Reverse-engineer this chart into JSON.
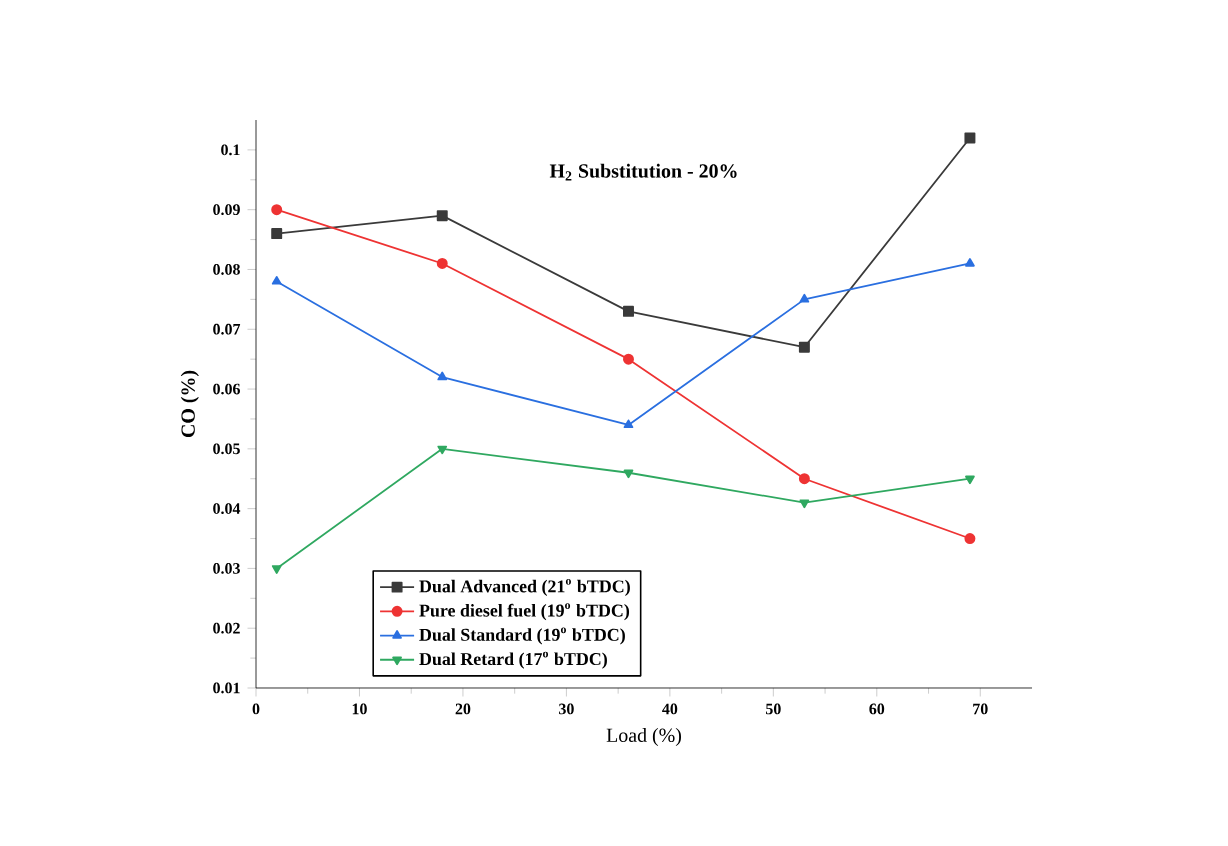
{
  "chart_data": {
    "type": "line",
    "title": "H$_{2}$ Substitution - 20%",
    "xlabel": "Load (%)",
    "ylabel": "CO (%)",
    "x": [
      2,
      18,
      36,
      53,
      69
    ],
    "series": [
      {
        "name": "Dual Advanced (21$^{o}$ bTDC)",
        "color": "#3a3a3a",
        "marker": "square",
        "values": [
          0.086,
          0.089,
          0.073,
          0.067,
          0.102
        ]
      },
      {
        "name": "Pure diesel fuel (19$^{o}$ bTDC)",
        "color": "#ee3333",
        "marker": "circle",
        "values": [
          0.09,
          0.081,
          0.065,
          0.045,
          0.035
        ]
      },
      {
        "name": "Dual Standard (19$^{o}$ bTDC)",
        "color": "#2a6fe0",
        "marker": "triangle",
        "values": [
          0.078,
          0.062,
          0.054,
          0.075,
          0.081
        ]
      },
      {
        "name": "Dual Retard (17$^{o}$ bTDC)",
        "color": "#2fa860",
        "marker": "triangle-down",
        "values": [
          0.03,
          0.05,
          0.046,
          0.041,
          0.045
        ]
      }
    ],
    "xlim": [
      0,
      75
    ],
    "ylim": [
      0.01,
      0.105
    ],
    "xticks": [
      0,
      10,
      20,
      30,
      40,
      50,
      60,
      70
    ],
    "yticks": [
      0.01,
      0.02,
      0.03,
      0.04,
      0.05,
      0.06,
      0.07,
      0.08,
      0.09,
      0.1
    ],
    "legend": "bottom left",
    "grid": false,
    "line_style": "solid"
  }
}
